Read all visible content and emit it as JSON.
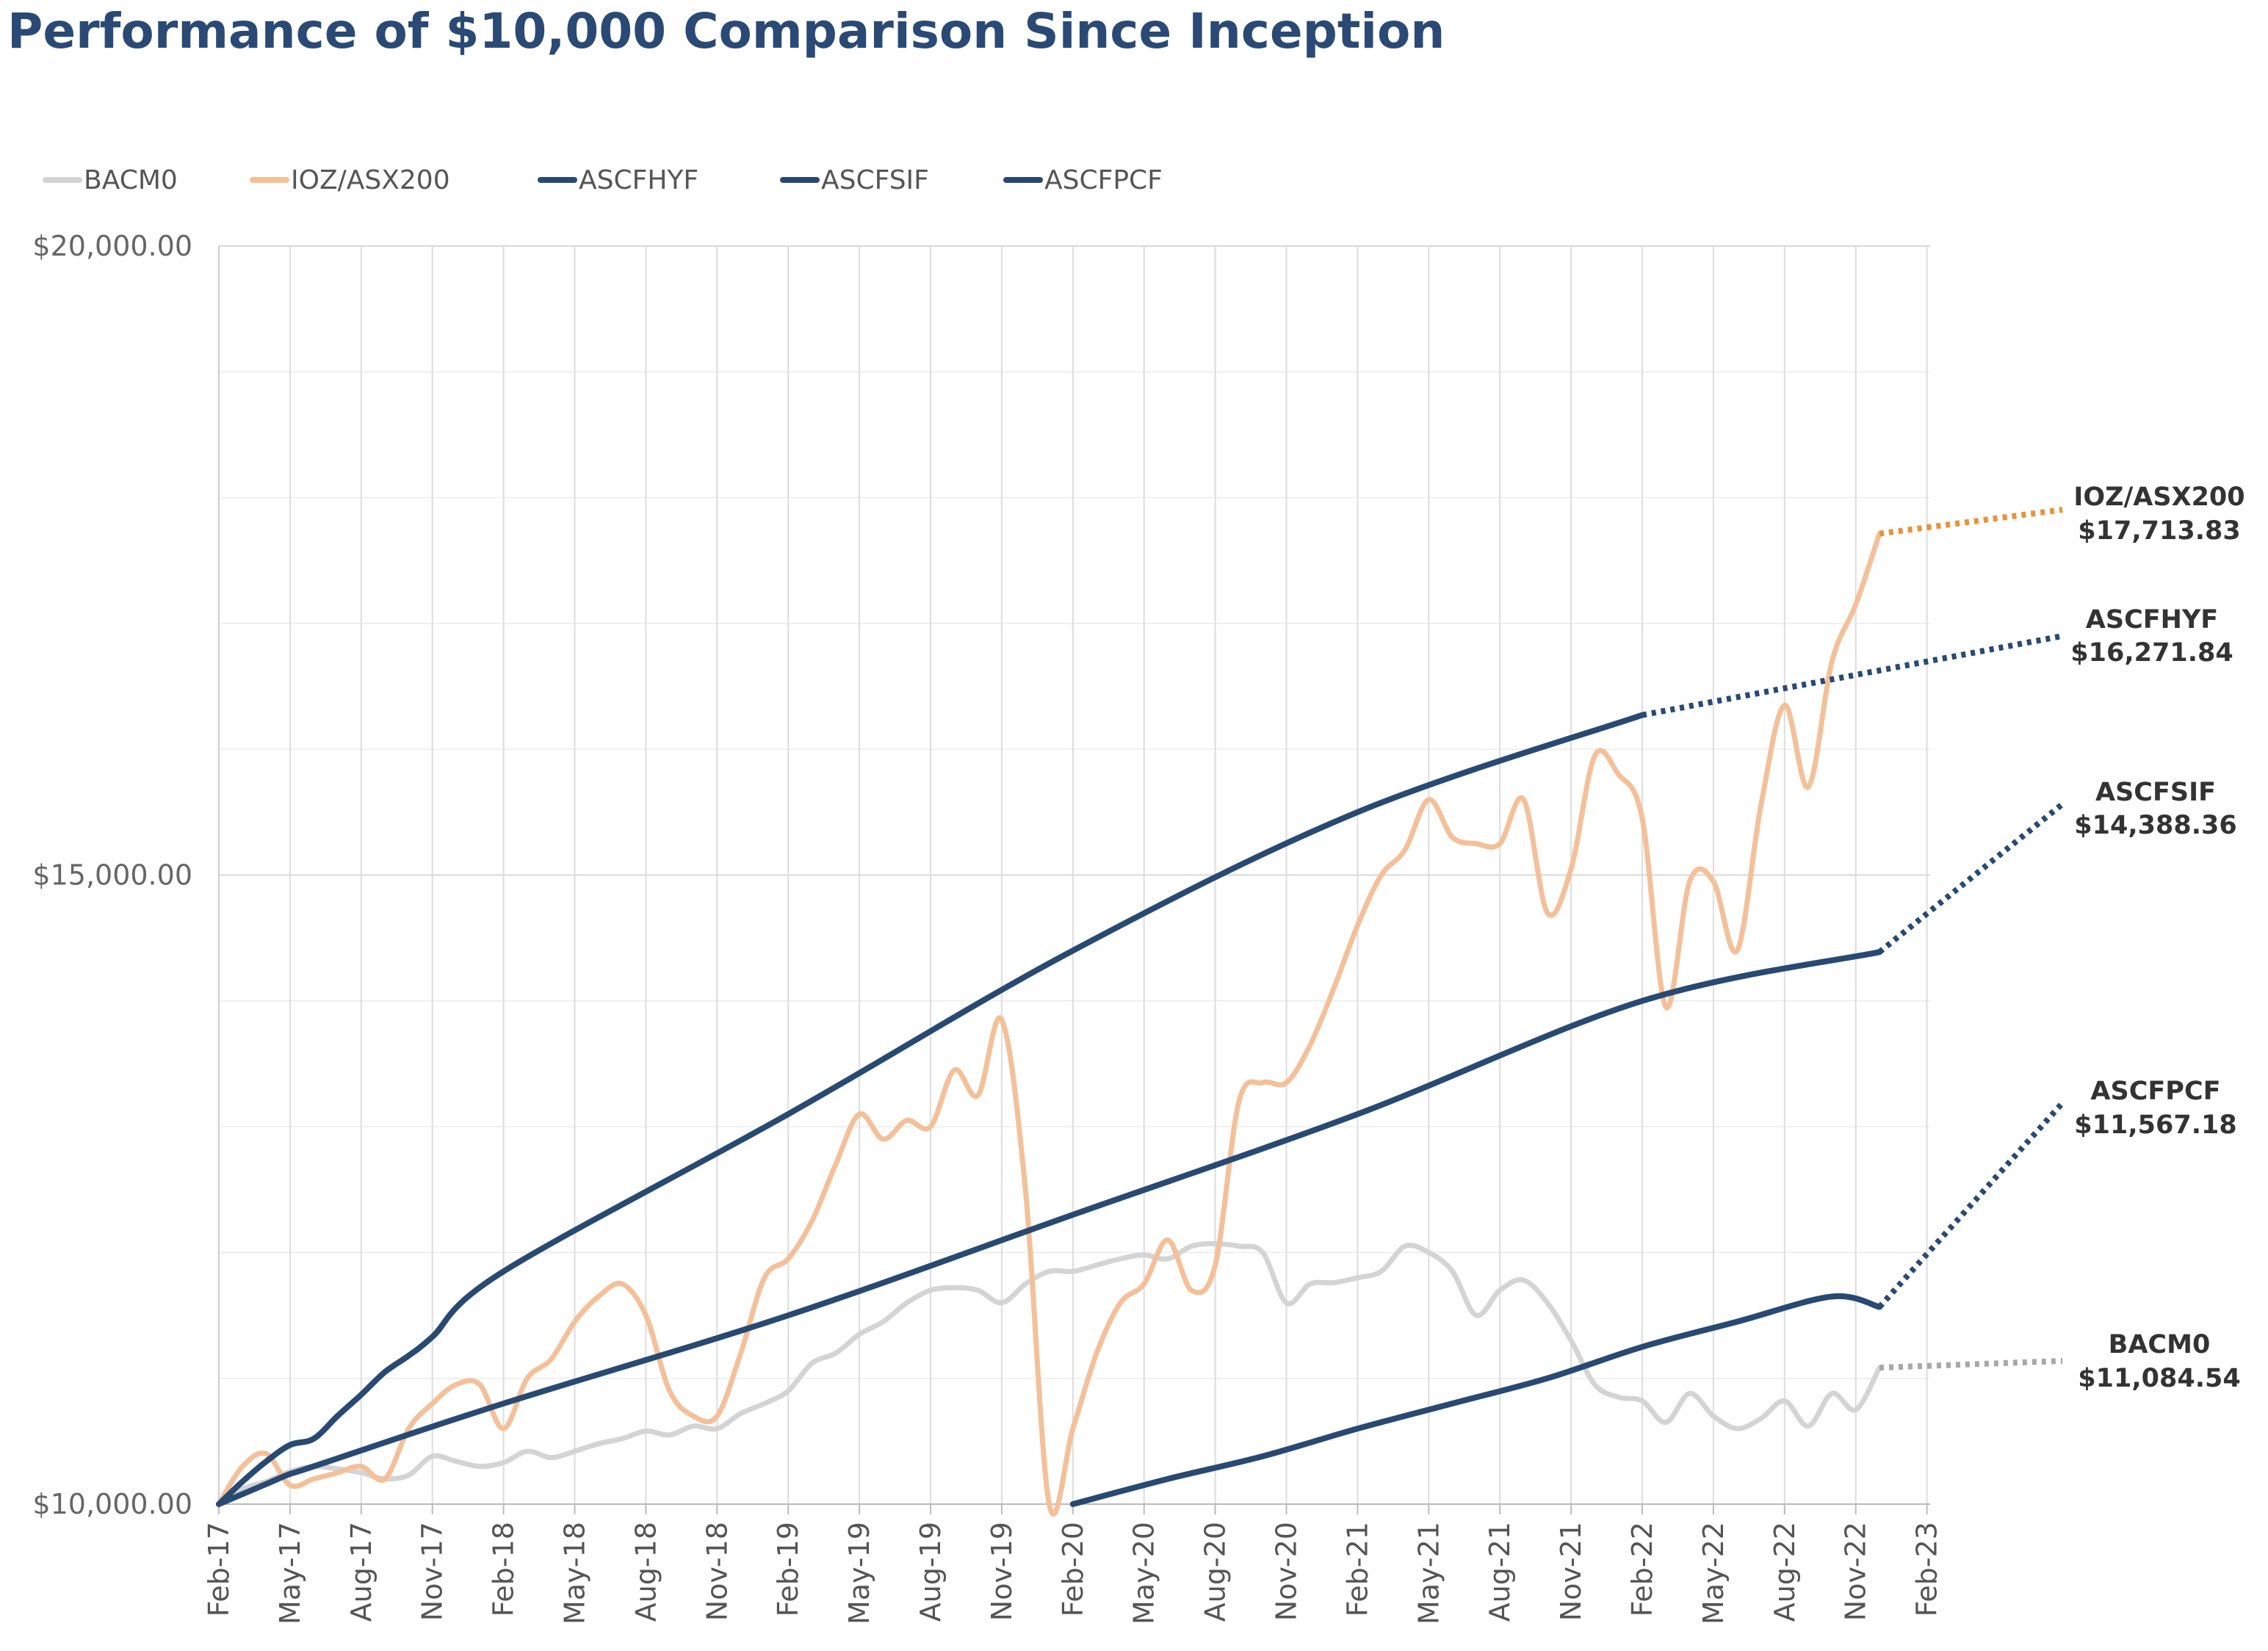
{
  "chart_data": {
    "type": "line",
    "title": "Performance of $10,000 Comparison Since Inception",
    "xlabel": "",
    "ylabel": "",
    "ylim": [
      10000,
      20000
    ],
    "y_ticks": [
      "$10,000.00",
      "$15,000.00",
      "$20,000.00"
    ],
    "y_tick_values": [
      10000,
      15000,
      20000
    ],
    "x_ticks": [
      "Feb-17",
      "May-17",
      "Aug-17",
      "Nov-17",
      "Feb-18",
      "May-18",
      "Aug-18",
      "Nov-18",
      "Feb-19",
      "May-19",
      "Aug-19",
      "Nov-19",
      "Feb-20",
      "May-20",
      "Aug-20",
      "Nov-20",
      "Feb-21",
      "May-21",
      "Aug-21",
      "Nov-21",
      "Feb-22",
      "May-22",
      "Aug-22",
      "Nov-22",
      "Feb-23"
    ],
    "x_range_months": [
      0,
      74
    ],
    "grid": true,
    "legend_position": "top-left",
    "series": [
      {
        "name": "BACM0",
        "color": "#d4d4d4",
        "end_label": "BACM0",
        "end_value": "$11,084.54",
        "end_value_num": 11084.54,
        "points": [
          [
            0,
            10000
          ],
          [
            1,
            10120
          ],
          [
            2,
            10180
          ],
          [
            3,
            10260
          ],
          [
            4,
            10300
          ],
          [
            5,
            10280
          ],
          [
            6,
            10250
          ],
          [
            7,
            10200
          ],
          [
            8,
            10230
          ],
          [
            9,
            10380
          ],
          [
            10,
            10340
          ],
          [
            11,
            10300
          ],
          [
            12,
            10330
          ],
          [
            13,
            10420
          ],
          [
            14,
            10370
          ],
          [
            15,
            10420
          ],
          [
            16,
            10480
          ],
          [
            17,
            10520
          ],
          [
            18,
            10580
          ],
          [
            19,
            10550
          ],
          [
            20,
            10620
          ],
          [
            21,
            10600
          ],
          [
            22,
            10720
          ],
          [
            23,
            10800
          ],
          [
            24,
            10900
          ],
          [
            25,
            11120
          ],
          [
            26,
            11200
          ],
          [
            27,
            11350
          ],
          [
            28,
            11450
          ],
          [
            29,
            11600
          ],
          [
            30,
            11700
          ],
          [
            31,
            11720
          ],
          [
            32,
            11700
          ],
          [
            33,
            11600
          ],
          [
            34,
            11750
          ],
          [
            35,
            11850
          ],
          [
            36,
            11850
          ],
          [
            37,
            11900
          ],
          [
            38,
            11950
          ],
          [
            39,
            11980
          ],
          [
            40,
            11950
          ],
          [
            41,
            12050
          ],
          [
            42,
            12070
          ],
          [
            43,
            12050
          ],
          [
            44,
            12000
          ],
          [
            45,
            11600
          ],
          [
            46,
            11750
          ],
          [
            47,
            11760
          ],
          [
            48,
            11800
          ],
          [
            49,
            11850
          ],
          [
            50,
            12050
          ],
          [
            51,
            12000
          ],
          [
            52,
            11850
          ],
          [
            53,
            11500
          ],
          [
            54,
            11700
          ],
          [
            55,
            11780
          ],
          [
            56,
            11600
          ],
          [
            57,
            11300
          ],
          [
            58,
            10950
          ],
          [
            59,
            10850
          ],
          [
            60,
            10820
          ],
          [
            61,
            10650
          ],
          [
            62,
            10880
          ],
          [
            63,
            10700
          ],
          [
            64,
            10600
          ],
          [
            65,
            10680
          ],
          [
            66,
            10820
          ],
          [
            67,
            10620
          ],
          [
            68,
            10880
          ],
          [
            69,
            10750
          ],
          [
            70,
            11084.54
          ]
        ]
      },
      {
        "name": "IOZ/ASX200",
        "color": "#f4c099",
        "end_color": "#e89339",
        "end_label": "IOZ/ASX200",
        "end_value": "$17,713.83",
        "end_value_num": 17713.83,
        "points": [
          [
            0,
            10000
          ],
          [
            1,
            10300
          ],
          [
            2,
            10400
          ],
          [
            3,
            10150
          ],
          [
            4,
            10200
          ],
          [
            5,
            10250
          ],
          [
            6,
            10300
          ],
          [
            7,
            10200
          ],
          [
            8,
            10600
          ],
          [
            9,
            10800
          ],
          [
            10,
            10950
          ],
          [
            11,
            10950
          ],
          [
            12,
            10600
          ],
          [
            13,
            11000
          ],
          [
            14,
            11150
          ],
          [
            15,
            11450
          ],
          [
            16,
            11650
          ],
          [
            17,
            11750
          ],
          [
            18,
            11500
          ],
          [
            19,
            10900
          ],
          [
            20,
            10700
          ],
          [
            21,
            10700
          ],
          [
            22,
            11200
          ],
          [
            23,
            11800
          ],
          [
            24,
            11950
          ],
          [
            25,
            12250
          ],
          [
            26,
            12700
          ],
          [
            27,
            13100
          ],
          [
            28,
            12900
          ],
          [
            29,
            13050
          ],
          [
            30,
            13000
          ],
          [
            31,
            13450
          ],
          [
            32,
            13250
          ],
          [
            33,
            13850
          ],
          [
            34,
            12500
          ],
          [
            35,
            10000
          ],
          [
            36,
            10600
          ],
          [
            37,
            11200
          ],
          [
            38,
            11600
          ],
          [
            39,
            11750
          ],
          [
            40,
            12100
          ],
          [
            41,
            11700
          ],
          [
            42,
            11900
          ],
          [
            43,
            13200
          ],
          [
            44,
            13350
          ],
          [
            45,
            13350
          ],
          [
            46,
            13650
          ],
          [
            47,
            14100
          ],
          [
            48,
            14600
          ],
          [
            49,
            15000
          ],
          [
            50,
            15200
          ],
          [
            51,
            15600
          ],
          [
            52,
            15300
          ],
          [
            53,
            15250
          ],
          [
            54,
            15250
          ],
          [
            55,
            15600
          ],
          [
            56,
            14700
          ],
          [
            57,
            15050
          ],
          [
            58,
            15950
          ],
          [
            59,
            15800
          ],
          [
            60,
            15450
          ],
          [
            61,
            13950
          ],
          [
            62,
            14950
          ],
          [
            63,
            14950
          ],
          [
            64,
            14400
          ],
          [
            65,
            15550
          ],
          [
            66,
            16350
          ],
          [
            67,
            15700
          ],
          [
            68,
            16700
          ],
          [
            69,
            17150
          ],
          [
            70,
            17713.83
          ]
        ]
      },
      {
        "name": "ASCFHYF",
        "color": "#284a72",
        "end_label": "ASCFHYF",
        "end_value": "$16,271.84",
        "end_value_num": 16271.84,
        "points": [
          [
            0,
            10000
          ],
          [
            1,
            10180
          ],
          [
            2,
            10340
          ],
          [
            3,
            10470
          ],
          [
            4,
            10520
          ],
          [
            5,
            10700
          ],
          [
            6,
            10870
          ],
          [
            7,
            11050
          ],
          [
            8,
            11180
          ],
          [
            9,
            11330
          ],
          [
            12,
            11850
          ],
          [
            24,
            13100
          ],
          [
            36,
            14400
          ],
          [
            48,
            15500
          ],
          [
            60,
            16271.84
          ]
        ]
      },
      {
        "name": "ASCFSIF",
        "color": "#284a72",
        "end_label": "ASCFSIF",
        "end_value": "$14,388.36",
        "end_value_num": 14388.36,
        "points": [
          [
            0,
            10000
          ],
          [
            1,
            10080
          ],
          [
            2,
            10160
          ],
          [
            3,
            10240
          ],
          [
            4,
            10300
          ],
          [
            12,
            10800
          ],
          [
            24,
            11500
          ],
          [
            36,
            12300
          ],
          [
            48,
            13100
          ],
          [
            60,
            14000
          ],
          [
            70,
            14388.36
          ]
        ]
      },
      {
        "name": "ASCFPCF",
        "color": "#284a72",
        "end_label": "ASCFPCF",
        "end_value": "$11,567.18",
        "end_value_num": 11567.18,
        "points": [
          [
            36,
            10000
          ],
          [
            40,
            10200
          ],
          [
            44,
            10380
          ],
          [
            48,
            10600
          ],
          [
            52,
            10800
          ],
          [
            56,
            11000
          ],
          [
            60,
            11250
          ],
          [
            64,
            11450
          ],
          [
            68,
            11650
          ],
          [
            70,
            11567.18
          ]
        ]
      }
    ]
  }
}
